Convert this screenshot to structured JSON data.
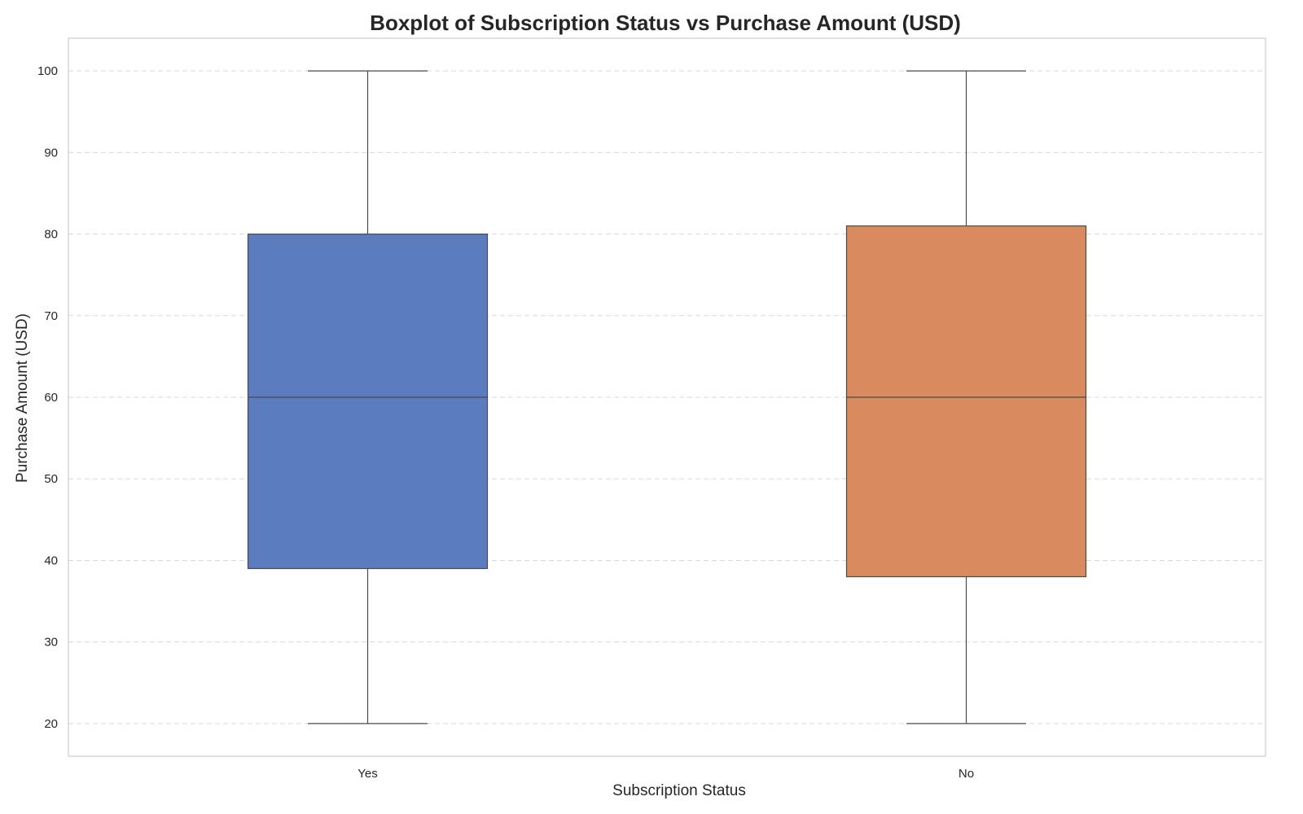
{
  "chart_data": {
    "type": "boxplot",
    "title": "Boxplot of Subscription Status vs Purchase Amount (USD)",
    "xlabel": "Subscription Status",
    "ylabel": "Purchase Amount (USD)",
    "categories": [
      "Yes",
      "No"
    ],
    "boxes": [
      {
        "category": "Yes",
        "min": 20,
        "q1": 39,
        "median": 60,
        "q3": 80,
        "max": 100,
        "color": "#5b7dbf"
      },
      {
        "category": "No",
        "min": 20,
        "q1": 38,
        "median": 60,
        "q3": 81,
        "max": 100,
        "color": "#d98a5f"
      }
    ],
    "ylim": [
      16,
      104
    ],
    "yticks": [
      20,
      30,
      40,
      50,
      60,
      70,
      80,
      90,
      100
    ],
    "grid": "horizontal dashed",
    "legend": "none"
  }
}
